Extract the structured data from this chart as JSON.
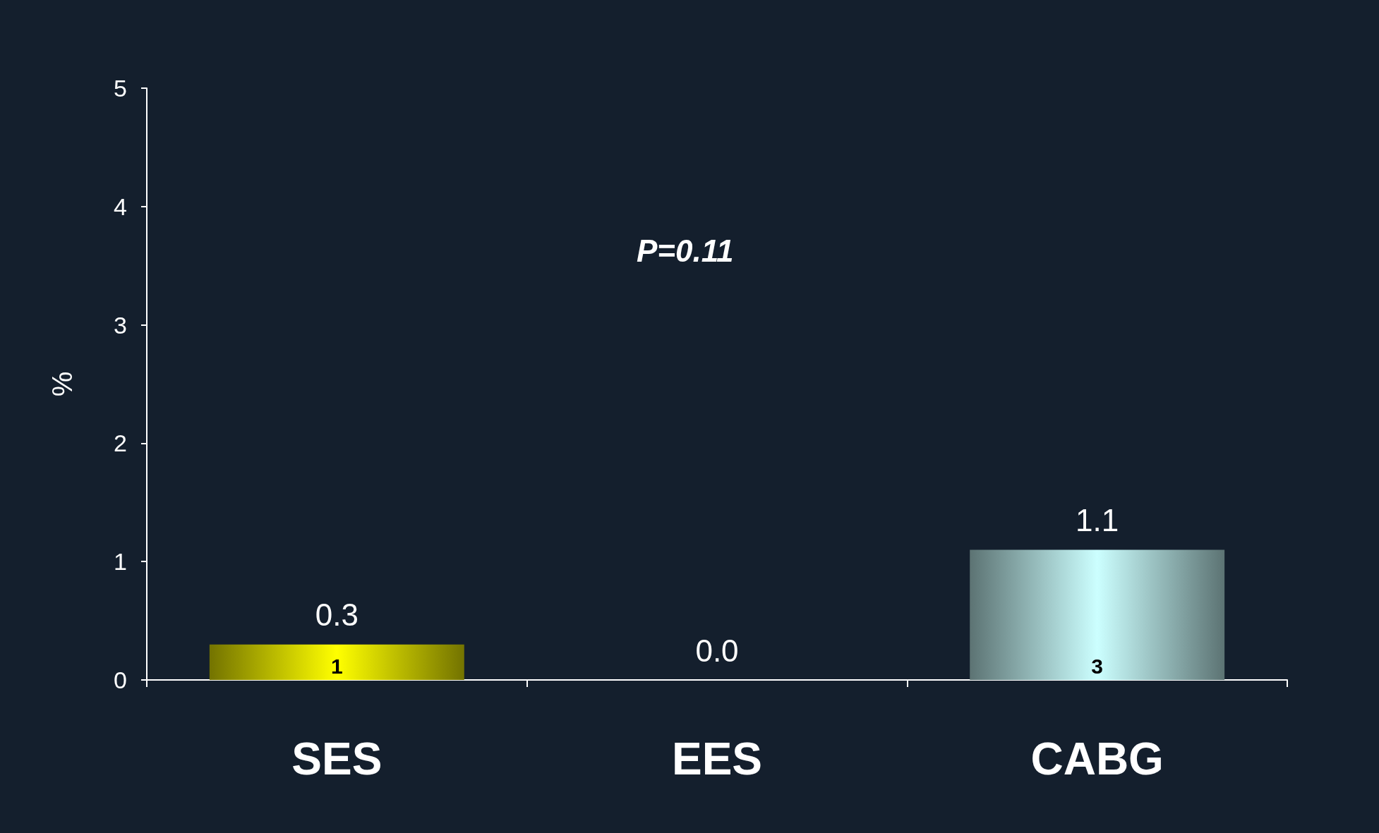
{
  "chart_data": {
    "type": "bar",
    "categories": [
      "SES",
      "EES",
      "CABG"
    ],
    "values": [
      0.3,
      0.0,
      1.1
    ],
    "colors": [
      "#ffff00",
      "#ffff00",
      "#ccffff"
    ],
    "value_labels": [
      "0.3",
      "0.0",
      "1.1"
    ],
    "ylabel": "%",
    "ylim": [
      0,
      5
    ],
    "yticks": [
      0,
      1,
      2,
      3,
      4,
      5
    ],
    "grid": false,
    "annotations": [
      "P=0.11",
      "1",
      "3"
    ]
  }
}
